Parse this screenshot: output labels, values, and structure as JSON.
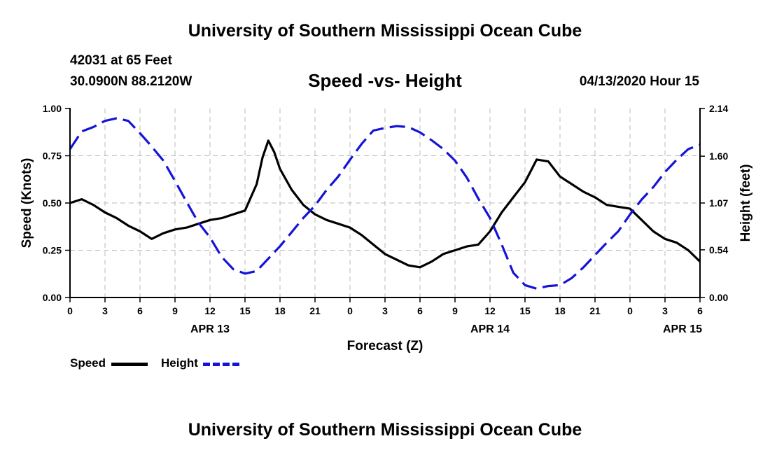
{
  "header": {
    "title": "University of Southern Mississippi Ocean Cube",
    "station": "42031 at 65 Feet",
    "coords": "30.0900N 88.2120W",
    "date": "04/13/2020 Hour 15"
  },
  "footer": {
    "title": "University of Southern Mississippi Ocean Cube"
  },
  "legend": {
    "speed_label": "Speed",
    "height_label": "Height"
  },
  "colors": {
    "speed": "#000000",
    "height": "#1414d8",
    "grid": "#bbbbbb"
  },
  "chart_data": {
    "type": "line",
    "title": "Speed -vs- Height",
    "xlabel": "Forecast (Z)",
    "ylabel": "Speed (Knots)",
    "ylabel_right": "Height (feet)",
    "xlim": [
      0,
      54
    ],
    "ylim": [
      0,
      1.0
    ],
    "ylim_right": [
      0,
      2.14
    ],
    "grid": true,
    "x_ticks": [
      0,
      3,
      6,
      9,
      12,
      15,
      18,
      21,
      24,
      27,
      30,
      33,
      36,
      39,
      42,
      45,
      48,
      51,
      54
    ],
    "x_tick_labels": [
      "0",
      "3",
      "6",
      "9",
      "12",
      "15",
      "18",
      "21",
      "0",
      "3",
      "6",
      "9",
      "12",
      "15",
      "18",
      "21",
      "0",
      "3",
      "6"
    ],
    "y_ticks": [
      0,
      0.25,
      0.5,
      0.75,
      1.0
    ],
    "y_tick_labels": [
      "0.00",
      "0.25",
      "0.50",
      "0.75",
      "1.00"
    ],
    "y_ticks_right": [
      0,
      0.54,
      1.07,
      1.6,
      2.14
    ],
    "y_tick_labels_right": [
      "0.00",
      "0.54",
      "1.07",
      "1.60",
      "2.14"
    ],
    "date_labels": [
      {
        "x": 12,
        "label": "APR 13"
      },
      {
        "x": 36,
        "label": "APR 14"
      },
      {
        "x": 52.5,
        "label": "APR 15"
      }
    ],
    "series": [
      {
        "name": "Speed",
        "axis": "left",
        "style": "solid",
        "x": [
          0,
          1,
          2,
          3,
          4,
          5,
          6,
          7,
          8,
          9,
          10,
          11,
          12,
          13,
          14,
          15,
          16,
          16.5,
          17,
          17.5,
          18,
          19,
          20,
          21,
          22,
          23,
          24,
          25,
          26,
          27,
          28,
          29,
          30,
          31,
          32,
          33,
          34,
          35,
          36,
          37,
          38,
          39,
          40,
          41,
          42,
          43,
          44,
          45,
          46,
          47,
          48,
          49,
          50,
          51,
          52,
          53,
          54
        ],
        "values": [
          0.5,
          0.52,
          0.49,
          0.45,
          0.42,
          0.38,
          0.35,
          0.31,
          0.34,
          0.36,
          0.37,
          0.39,
          0.41,
          0.42,
          0.44,
          0.46,
          0.6,
          0.74,
          0.83,
          0.77,
          0.68,
          0.57,
          0.49,
          0.44,
          0.41,
          0.39,
          0.37,
          0.33,
          0.28,
          0.23,
          0.2,
          0.17,
          0.16,
          0.19,
          0.23,
          0.25,
          0.27,
          0.28,
          0.35,
          0.45,
          0.53,
          0.61,
          0.73,
          0.72,
          0.64,
          0.6,
          0.56,
          0.53,
          0.49,
          0.48,
          0.47,
          0.41,
          0.35,
          0.31,
          0.29,
          0.25,
          0.19
        ]
      },
      {
        "name": "Height",
        "axis": "right",
        "style": "dashed",
        "x": [
          0,
          1,
          2,
          3,
          4,
          5,
          6,
          7,
          8,
          9,
          10,
          11,
          12,
          13,
          14,
          15,
          16,
          17,
          18,
          19,
          20,
          21,
          22,
          23,
          24,
          25,
          26,
          27,
          28,
          29,
          30,
          31,
          32,
          33,
          34,
          35,
          36,
          37,
          38,
          39,
          40,
          41,
          42,
          43,
          44,
          45,
          46,
          47,
          48,
          49,
          50,
          51,
          52,
          53,
          54
        ],
        "values": [
          1.68,
          1.88,
          1.93,
          2.0,
          2.03,
          2.0,
          1.86,
          1.71,
          1.55,
          1.32,
          1.08,
          0.85,
          0.68,
          0.46,
          0.32,
          0.27,
          0.3,
          0.44,
          0.58,
          0.74,
          0.9,
          1.04,
          1.22,
          1.37,
          1.56,
          1.74,
          1.89,
          1.92,
          1.94,
          1.93,
          1.87,
          1.78,
          1.68,
          1.55,
          1.36,
          1.12,
          0.9,
          0.6,
          0.28,
          0.14,
          0.1,
          0.13,
          0.14,
          0.22,
          0.34,
          0.48,
          0.62,
          0.75,
          0.94,
          1.11,
          1.25,
          1.42,
          1.56,
          1.68,
          1.73
        ]
      }
    ]
  }
}
